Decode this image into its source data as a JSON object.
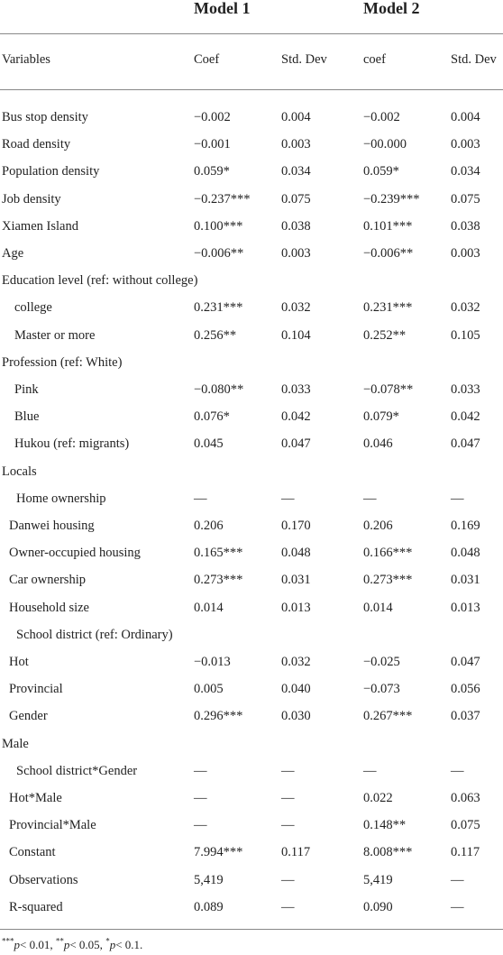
{
  "headings": {
    "model1": "Model 1",
    "model2": "Model 2"
  },
  "columns": [
    "Variables",
    "Coef",
    "Std. Dev",
    "coef",
    "Std. Dev"
  ],
  "rows": [
    {
      "label": "Bus stop density",
      "indent": 0,
      "m1_coef": "−0.002",
      "m1_sd": "0.004",
      "m2_coef": "−0.002",
      "m2_sd": "0.004"
    },
    {
      "label": "Road density",
      "indent": 0,
      "m1_coef": "−0.001",
      "m1_sd": "0.003",
      "m2_coef": "−00.000",
      "m2_sd": "0.003"
    },
    {
      "label": "Population density",
      "indent": 0,
      "m1_coef": "0.059*",
      "m1_sd": "0.034",
      "m2_coef": "0.059*",
      "m2_sd": "0.034"
    },
    {
      "label": "Job density",
      "indent": 0,
      "m1_coef": "−0.237***",
      "m1_sd": "0.075",
      "m2_coef": "−0.239***",
      "m2_sd": "0.075"
    },
    {
      "label": "Xiamen Island",
      "indent": 0,
      "m1_coef": "0.100***",
      "m1_sd": "0.038",
      "m2_coef": "0.101***",
      "m2_sd": "0.038"
    },
    {
      "label": "Age",
      "indent": 0,
      "m1_coef": "−0.006**",
      "m1_sd": "0.003",
      "m2_coef": "−0.006**",
      "m2_sd": "0.003"
    },
    {
      "label": "Education level (ref: without college)",
      "indent": 0,
      "m1_coef": "",
      "m1_sd": "",
      "m2_coef": "",
      "m2_sd": ""
    },
    {
      "label": "college",
      "indent": 14,
      "m1_coef": "0.231***",
      "m1_sd": "0.032",
      "m2_coef": "0.231***",
      "m2_sd": "0.032"
    },
    {
      "label": "Master or more",
      "indent": 14,
      "m1_coef": "0.256**",
      "m1_sd": "0.104",
      "m2_coef": "0.252**",
      "m2_sd": "0.105"
    },
    {
      "label": "Profession (ref: White)",
      "indent": 0,
      "m1_coef": "",
      "m1_sd": "",
      "m2_coef": "",
      "m2_sd": ""
    },
    {
      "label": "Pink",
      "indent": 14,
      "m1_coef": "−0.080**",
      "m1_sd": "0.033",
      "m2_coef": "−0.078**",
      "m2_sd": "0.033"
    },
    {
      "label": "Blue",
      "indent": 14,
      "m1_coef": "0.076*",
      "m1_sd": "0.042",
      "m2_coef": "0.079*",
      "m2_sd": "0.042"
    },
    {
      "label": "Hukou (ref: migrants)",
      "indent": 14,
      "m1_coef": "0.045",
      "m1_sd": "0.047",
      "m2_coef": "0.046",
      "m2_sd": "0.047"
    },
    {
      "label": "Locals",
      "indent": 0,
      "m1_coef": "",
      "m1_sd": "",
      "m2_coef": "",
      "m2_sd": ""
    },
    {
      "label": "Home ownership",
      "indent": 16,
      "m1_coef": "—",
      "m1_sd": "—",
      "m2_coef": "—",
      "m2_sd": "—"
    },
    {
      "label": "Danwei housing",
      "indent": 8,
      "m1_coef": "0.206",
      "m1_sd": "0.170",
      "m2_coef": "0.206",
      "m2_sd": "0.169"
    },
    {
      "label": "Owner-occupied housing",
      "indent": 8,
      "m1_coef": "0.165***",
      "m1_sd": "0.048",
      "m2_coef": "0.166***",
      "m2_sd": "0.048"
    },
    {
      "label": "Car ownership",
      "indent": 8,
      "m1_coef": "0.273***",
      "m1_sd": "0.031",
      "m2_coef": "0.273***",
      "m2_sd": "0.031"
    },
    {
      "label": "Household size",
      "indent": 8,
      "m1_coef": "0.014",
      "m1_sd": "0.013",
      "m2_coef": "0.014",
      "m2_sd": "0.013"
    },
    {
      "label": "School district (ref: Ordinary)",
      "indent": 16,
      "m1_coef": "",
      "m1_sd": "",
      "m2_coef": "",
      "m2_sd": ""
    },
    {
      "label": "Hot",
      "indent": 8,
      "m1_coef": "−0.013",
      "m1_sd": "0.032",
      "m2_coef": "−0.025",
      "m2_sd": "0.047"
    },
    {
      "label": "Provincial",
      "indent": 8,
      "m1_coef": "0.005",
      "m1_sd": "0.040",
      "m2_coef": "−0.073",
      "m2_sd": "0.056"
    },
    {
      "label": "Gender",
      "indent": 8,
      "m1_coef": "0.296***",
      "m1_sd": "0.030",
      "m2_coef": "0.267***",
      "m2_sd": "0.037"
    },
    {
      "label": "Male",
      "indent": 0,
      "m1_coef": "",
      "m1_sd": "",
      "m2_coef": "",
      "m2_sd": ""
    },
    {
      "label": "School district*Gender",
      "indent": 16,
      "m1_coef": "—",
      "m1_sd": "—",
      "m2_coef": "—",
      "m2_sd": "—"
    },
    {
      "label": "Hot*Male",
      "indent": 8,
      "m1_coef": "—",
      "m1_sd": "—",
      "m2_coef": "0.022",
      "m2_sd": "0.063"
    },
    {
      "label": "Provincial*Male",
      "indent": 8,
      "m1_coef": "—",
      "m1_sd": "—",
      "m2_coef": "0.148**",
      "m2_sd": "0.075"
    },
    {
      "label": "Constant",
      "indent": 8,
      "m1_coef": "7.994***",
      "m1_sd": "0.117",
      "m2_coef": "8.008***",
      "m2_sd": "0.117"
    },
    {
      "label": "Observations",
      "indent": 8,
      "m1_coef": "5,419",
      "m1_sd": "—",
      "m2_coef": "5,419",
      "m2_sd": "—"
    },
    {
      "label": "R-squared",
      "indent": 8,
      "m1_coef": "0.089",
      "m1_sd": "—",
      "m2_coef": "0.090",
      "m2_sd": "—"
    }
  ],
  "footnote": "***p< 0.01, **p< 0.05, *p< 0.1."
}
